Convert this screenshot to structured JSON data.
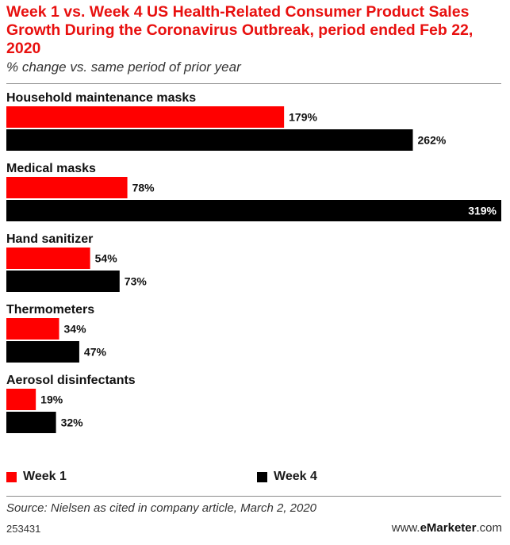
{
  "header": {
    "title": "Week 1 vs. Week 4 US Health-Related Consumer Product Sales Growth During the Coronavirus Outbreak, period ended Feb 22, 2020",
    "subtitle": "% change vs. same period of prior year"
  },
  "chart_data": {
    "type": "bar",
    "orientation": "horizontal",
    "categories": [
      "Household maintenance masks",
      "Medical masks",
      "Hand sanitizer",
      "Thermometers",
      "Aerosol disinfectants"
    ],
    "series": [
      {
        "name": "Week 1",
        "color": "#ff0000",
        "values": [
          179,
          78,
          54,
          34,
          19
        ],
        "labels": [
          "179%",
          "78%",
          "54%",
          "34%",
          "19%"
        ]
      },
      {
        "name": "Week 4",
        "color": "#000000",
        "values": [
          262,
          319,
          73,
          47,
          32
        ],
        "labels": [
          "262%",
          "319%",
          "73%",
          "47%",
          "32%"
        ]
      }
    ],
    "grid": false,
    "legend_position": "bottom"
  },
  "legend": {
    "week1": "Week 1",
    "week4": "Week 4"
  },
  "footer": {
    "source": "Source: Nielsen as cited in company article, March 2, 2020",
    "chart_id": "253431",
    "brand_prefix": "www.",
    "brand_name": "eMarketer",
    "brand_suffix": ".com"
  }
}
